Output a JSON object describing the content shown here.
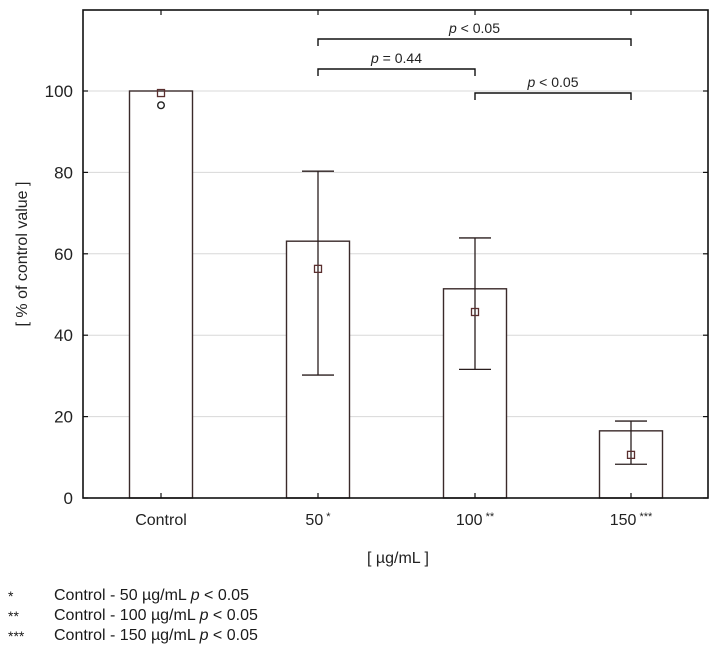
{
  "chart_data": {
    "type": "bar",
    "title": "",
    "xlabel": "[ µg/mL ]",
    "ylabel": "[ % of control value ]",
    "ylim": [
      0,
      120
    ],
    "yticks": [
      0,
      20,
      40,
      60,
      80,
      100
    ],
    "grid": true,
    "categories": [
      "Control",
      "50 *",
      "100 **",
      "150 ***"
    ],
    "values": [
      100.0,
      63.1,
      51.4,
      16.5
    ],
    "error_bars": {
      "upper": [
        100.0,
        80.3,
        63.9,
        18.9
      ],
      "lower": [
        100.0,
        30.2,
        31.6,
        8.3
      ]
    },
    "median_markers": [
      99.5,
      56.3,
      45.7,
      10.6
    ],
    "outliers": [
      {
        "category": "Control",
        "value": 96.5
      }
    ],
    "significance_brackets": [
      {
        "from": "50 *",
        "to": "150 ***",
        "label": "p < 0.05",
        "level": 3
      },
      {
        "from": "50 *",
        "to": "100 **",
        "label": "p = 0.44",
        "level": 2
      },
      {
        "from": "100 **",
        "to": "150 ***",
        "label": "p < 0.05",
        "level": 1
      }
    ],
    "footnotes": [
      {
        "mark": "*",
        "text": "Control - 50 µg/mL",
        "p": "p < 0.05"
      },
      {
        "mark": "**",
        "text": "Control - 100 µg/mL",
        "p": "p < 0.05"
      },
      {
        "mark": "***",
        "text": "Control - 150 µg/mL",
        "p": "p < 0.05"
      }
    ]
  }
}
